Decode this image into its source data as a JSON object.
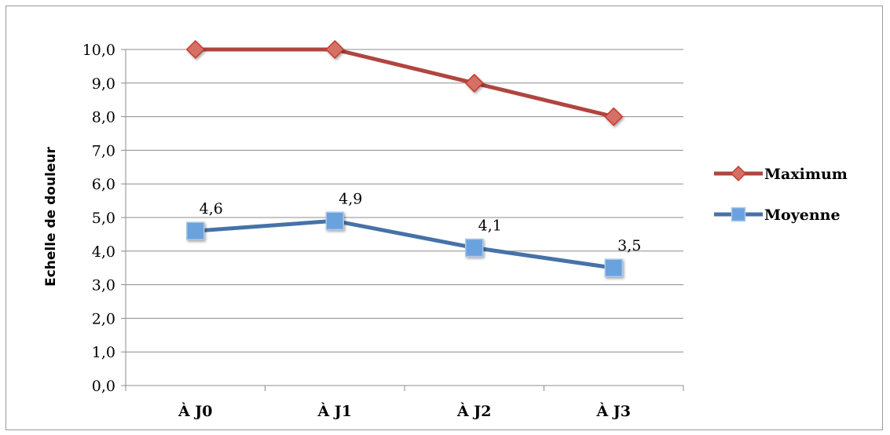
{
  "chart_data": {
    "type": "line",
    "categories": [
      "À J0",
      "À J1",
      "À J2",
      "À J3"
    ],
    "ylabel": "Echelle de douleur",
    "ylim": [
      0,
      10
    ],
    "y_ticks": [
      "0,0",
      "1,0",
      "2,0",
      "3,0",
      "4,0",
      "5,0",
      "6,0",
      "7,0",
      "8,0",
      "9,0",
      "10,0"
    ],
    "grid": true,
    "legend_position": "right",
    "series": [
      {
        "name": "Maximum",
        "values": [
          10,
          10,
          9,
          8
        ],
        "color": "#b0453f",
        "marker": "diamond",
        "data_labels": []
      },
      {
        "name": "Moyenne",
        "values": [
          4.6,
          4.9,
          4.1,
          3.5
        ],
        "color": "#4672a8",
        "marker": "square",
        "data_labels": [
          "4,6",
          "4,9",
          "4,1",
          "3,5"
        ]
      }
    ]
  }
}
